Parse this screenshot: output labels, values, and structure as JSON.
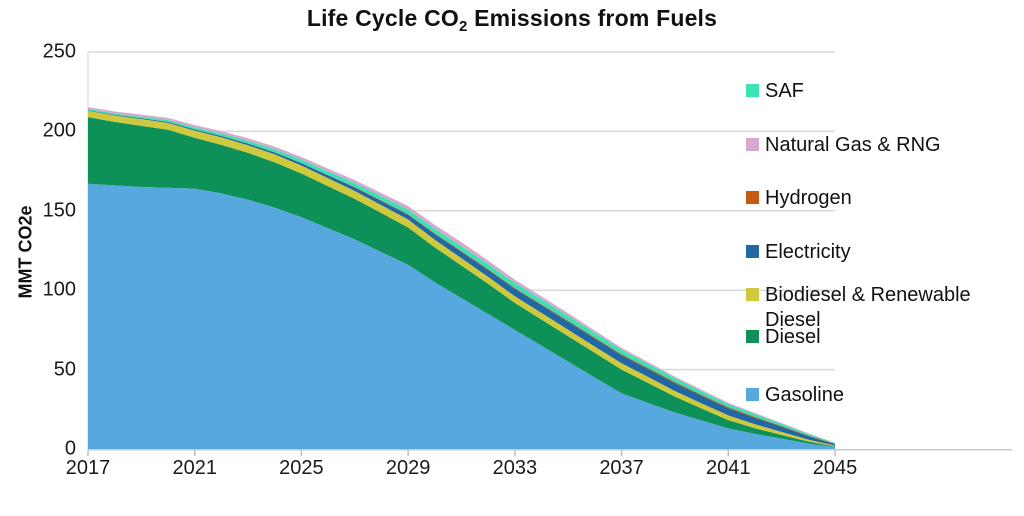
{
  "title_parts": {
    "prefix": "Life Cycle CO",
    "subscript": "2",
    "suffix": " Emissions from Fuels"
  },
  "chart_data": {
    "type": "area",
    "stacked": true,
    "title": "Life Cycle CO2 Emissions from Fuels",
    "xlabel": "",
    "ylabel": "MMT CO2e",
    "ylim": [
      0,
      250
    ],
    "yticks": [
      0,
      50,
      100,
      150,
      200,
      250
    ],
    "xticks": [
      2017,
      2021,
      2025,
      2029,
      2033,
      2037,
      2041,
      2045
    ],
    "grid": "horizontal",
    "x": [
      2017,
      2018,
      2019,
      2020,
      2021,
      2022,
      2023,
      2024,
      2025,
      2026,
      2027,
      2028,
      2029,
      2030,
      2031,
      2032,
      2033,
      2034,
      2035,
      2036,
      2037,
      2038,
      2039,
      2040,
      2041,
      2042,
      2043,
      2044,
      2045
    ],
    "series": [
      {
        "name": "Gasoline",
        "color": "#56A8DE",
        "values": [
          167,
          166,
          165,
          164.5,
          164,
          161,
          157,
          152,
          146,
          139,
          132,
          124,
          116,
          105,
          95,
          85,
          75,
          65,
          55,
          45,
          35,
          29,
          23,
          18,
          13,
          9.5,
          6.5,
          3.5,
          1.2
        ]
      },
      {
        "name": "Diesel",
        "color": "#0E9158",
        "values": [
          42,
          40,
          38.5,
          36.5,
          32,
          30.5,
          29.5,
          28.5,
          27.5,
          26.5,
          25.5,
          24.5,
          23.5,
          22,
          20.5,
          19,
          17,
          16.5,
          16,
          15.5,
          15,
          12.5,
          10,
          7.5,
          5.2,
          3.6,
          2.3,
          1.2,
          0.4
        ]
      },
      {
        "name": "Biodiesel & Renewable Diesel",
        "color": "#CFC93E",
        "values": [
          4,
          4,
          4.2,
          4.4,
          4.5,
          4.7,
          4.8,
          5,
          5,
          5,
          5,
          5,
          5,
          4.8,
          4.6,
          4.4,
          4.2,
          4.2,
          4.1,
          4,
          4,
          3.8,
          3.5,
          3.2,
          3,
          2.5,
          2,
          1.2,
          0.5
        ]
      },
      {
        "name": "Electricity",
        "color": "#2166A5",
        "values": [
          0.3,
          0.4,
          0.5,
          0.6,
          0.7,
          0.8,
          1,
          1.2,
          1.5,
          1.8,
          2.2,
          2.6,
          3,
          3.5,
          4,
          4.3,
          4.6,
          4.8,
          5,
          5,
          5,
          5,
          5,
          4.8,
          4.5,
          4,
          3.2,
          2.2,
          1
        ]
      },
      {
        "name": "Hydrogen",
        "color": "#C55A11",
        "values": [
          0.05,
          0.05,
          0.1,
          0.1,
          0.1,
          0.15,
          0.15,
          0.2,
          0.2,
          0.25,
          0.3,
          0.35,
          0.4,
          0.45,
          0.5,
          0.55,
          0.6,
          0.6,
          0.65,
          0.65,
          0.7,
          0.7,
          0.7,
          0.7,
          0.65,
          0.6,
          0.5,
          0.4,
          0.2
        ]
      },
      {
        "name": "SAF",
        "color": "#3BE3B4",
        "values": [
          0.8,
          0.9,
          1,
          1.1,
          1.3,
          1.5,
          1.7,
          1.9,
          2.1,
          2.3,
          2.5,
          2.7,
          2.9,
          3,
          3.1,
          3.2,
          3.2,
          3.2,
          3.1,
          3,
          2.8,
          2.6,
          2.4,
          2.2,
          2,
          1.8,
          1.4,
          1,
          0.4
        ]
      },
      {
        "name": "Natural Gas & RNG",
        "color": "#D9A8CE",
        "values": [
          1.2,
          1.2,
          1.3,
          1.3,
          1.4,
          1.5,
          1.5,
          1.6,
          1.6,
          1.7,
          1.8,
          2,
          2.2,
          2.4,
          2.5,
          2.2,
          2,
          1.8,
          1.6,
          1.4,
          1.2,
          1.1,
          1,
          0.9,
          0.8,
          0.7,
          0.5,
          0.4,
          0.2
        ]
      }
    ],
    "legend": {
      "position": "right",
      "items_top_to_bottom": [
        {
          "label": "SAF",
          "color": "#3BE3B4"
        },
        {
          "label": "Natural Gas & RNG",
          "color": "#D9A8CE"
        },
        {
          "label": "Hydrogen",
          "color": "#C55A11"
        },
        {
          "label": "Electricity",
          "color": "#2166A5"
        },
        {
          "label": "Biodiesel & Renewable Diesel",
          "color": "#CFC93E"
        },
        {
          "label": "Diesel",
          "color": "#0E9158"
        },
        {
          "label": "Gasoline",
          "color": "#56A8DE"
        }
      ]
    },
    "colors": {
      "gridline": "#D9D9D9",
      "axis_line": "#C9C9C9",
      "tick_mark": "#BFBFBF",
      "text": "#1a1a1a"
    }
  }
}
